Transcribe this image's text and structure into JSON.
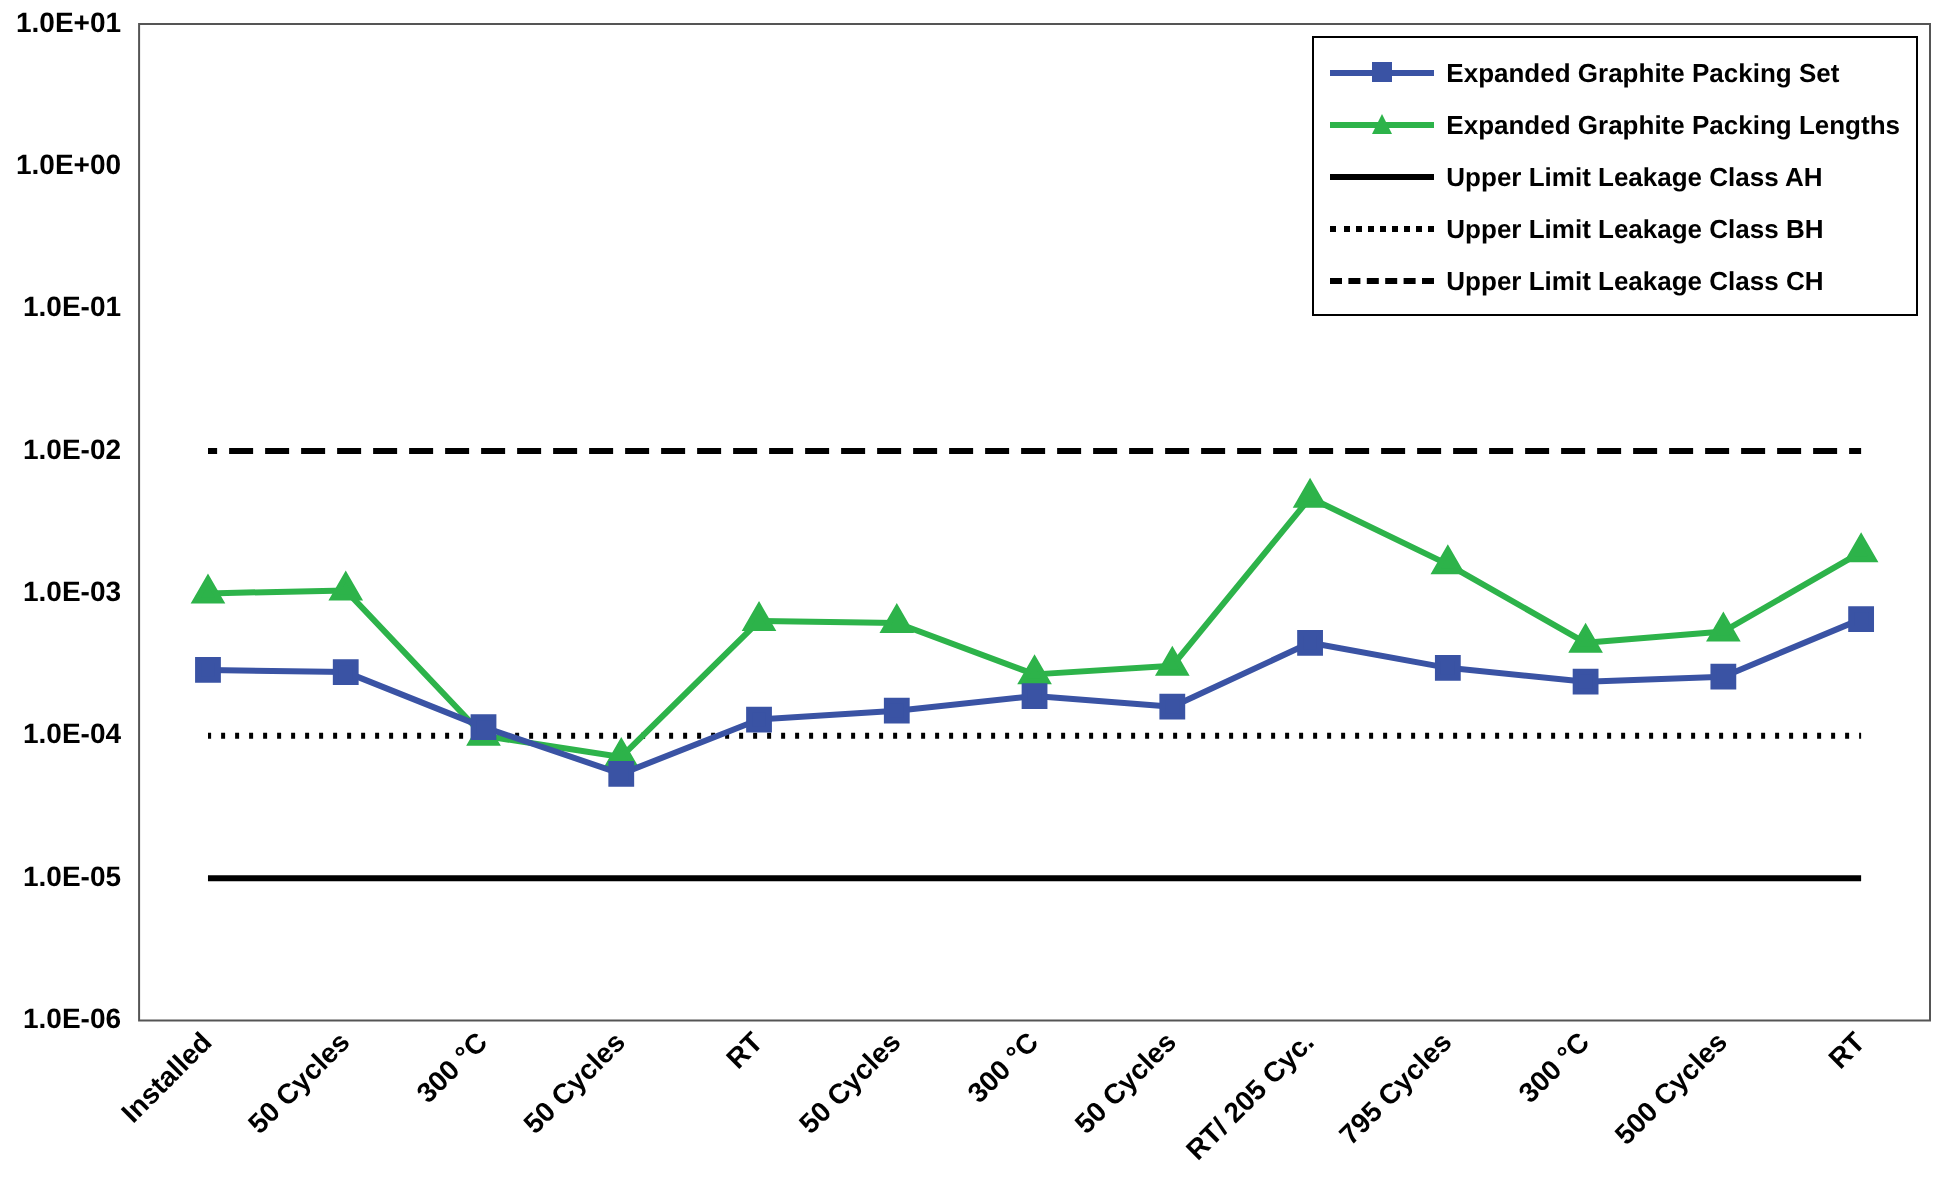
{
  "chart_data": {
    "type": "line",
    "categories": [
      "Installed",
      "50 Cycles",
      "300 °C",
      "50 Cycles",
      "RT",
      "50 Cycles",
      "300 °C",
      "50 Cycles",
      "RT/ 205 Cyc.",
      "795 Cycles",
      "300 °C",
      "500 Cycles",
      "RT"
    ],
    "series": [
      {
        "name": "Expanded Graphite Packing Set",
        "color": "#3a53a4",
        "marker": "square",
        "values": [
          0.00029,
          0.00028,
          0.000115,
          5.4e-05,
          0.00013,
          0.00015,
          0.00019,
          0.00016,
          0.00045,
          0.0003,
          0.00024,
          0.00026,
          0.00066
        ]
      },
      {
        "name": "Expanded Graphite Packing Lengths",
        "color": "#2db34a",
        "marker": "triangle",
        "values": [
          0.001,
          0.00105,
          0.0001,
          7.1e-05,
          0.00064,
          0.00062,
          0.00027,
          0.00031,
          0.0047,
          0.0016,
          0.00045,
          0.00054,
          0.00195
        ]
      },
      {
        "name": "Upper Limit Leakage Class AH",
        "color": "#000000",
        "marker": "none",
        "line_style": "solid",
        "values": [
          1e-05,
          1e-05,
          1e-05,
          1e-05,
          1e-05,
          1e-05,
          1e-05,
          1e-05,
          1e-05,
          1e-05,
          1e-05,
          1e-05,
          1e-05
        ]
      },
      {
        "name": "Upper Limit Leakage Class BH",
        "color": "#000000",
        "marker": "none",
        "line_style": "dotted",
        "values": [
          0.0001,
          0.0001,
          0.0001,
          0.0001,
          0.0001,
          0.0001,
          0.0001,
          0.0001,
          0.0001,
          0.0001,
          0.0001,
          0.0001,
          0.0001
        ]
      },
      {
        "name": "Upper Limit Leakage Class CH",
        "color": "#000000",
        "marker": "none",
        "line_style": "dashed",
        "values": [
          0.01,
          0.01,
          0.01,
          0.01,
          0.01,
          0.01,
          0.01,
          0.01,
          0.01,
          0.01,
          0.01,
          0.01,
          0.01
        ]
      }
    ],
    "log": "y",
    "ylim": [
      1e-06,
      10
    ],
    "yticks": [
      {
        "value": 1e-06,
        "label": "1.0E-06"
      },
      {
        "value": 1e-05,
        "label": "1.0E-05"
      },
      {
        "value": 0.0001,
        "label": "1.0E-04"
      },
      {
        "value": 0.001,
        "label": "1.0E-03"
      },
      {
        "value": 0.01,
        "label": "1.0E-02"
      },
      {
        "value": 0.1,
        "label": "1.0E-01"
      },
      {
        "value": 1,
        "label": "1.0E+00"
      },
      {
        "value": 10,
        "label": "1.0E+01"
      }
    ],
    "grid": false,
    "legend": "top right",
    "line_style": "solid"
  }
}
